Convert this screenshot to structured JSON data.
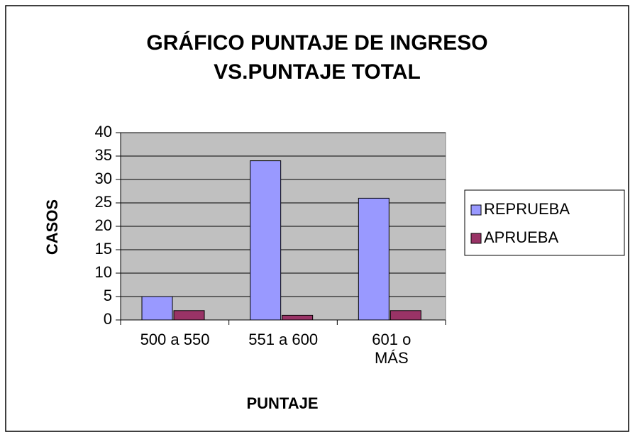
{
  "chart_data": {
    "type": "bar",
    "title": "GRÁFICO PUNTAJE DE INGRESO",
    "subtitle": "VS.PUNTAJE TOTAL",
    "x_label": "PUNTAJE",
    "y_label": "CASOS",
    "categories": [
      "500 a 550",
      "551 a 600",
      "601 o\nMÁS"
    ],
    "series": [
      {
        "name": "REPRUEBA",
        "color": "#9999ff",
        "values": [
          5,
          34,
          26
        ]
      },
      {
        "name": "APRUEBA",
        "color": "#993366",
        "values": [
          2,
          1,
          2
        ]
      }
    ],
    "ylim": [
      0,
      40
    ],
    "yticks": [
      0,
      5,
      10,
      15,
      20,
      25,
      30,
      35,
      40
    ],
    "grid": true,
    "legend": "right",
    "plot_background": "#c0c0c0"
  }
}
